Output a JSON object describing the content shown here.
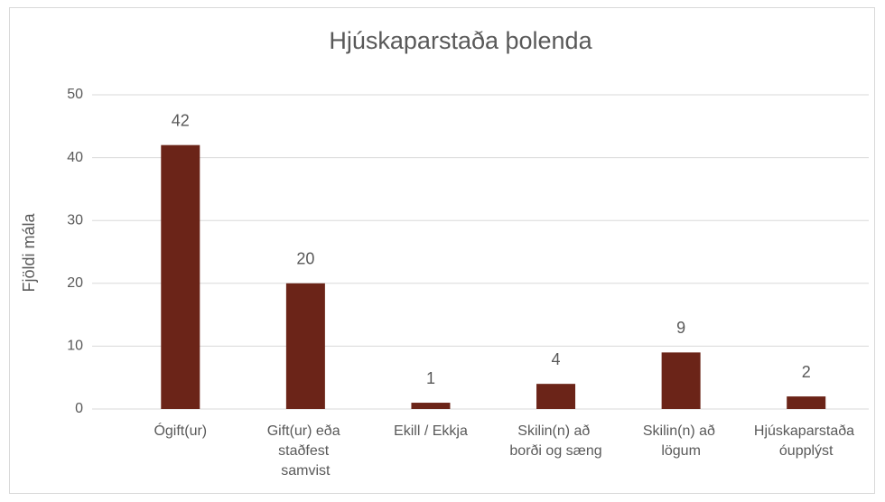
{
  "chart_data": {
    "type": "bar",
    "title": "Hjúskaparstaða þolenda",
    "y_label": "Fjöldi mála",
    "categories": [
      "Ógift(ur)",
      "Gift(ur) eða staðfest samvist",
      "Ekill / Ekkja",
      "Skilin(n) að borði og sæng",
      "Skilin(n) að lögum",
      "Hjúskaparstaða óupplýst"
    ],
    "values": [
      42,
      20,
      1,
      4,
      9,
      2
    ],
    "color": "#6b2418",
    "ylim": [
      0,
      50
    ],
    "yticks": [
      0,
      10,
      20,
      30,
      40,
      50
    ],
    "grid": true
  }
}
